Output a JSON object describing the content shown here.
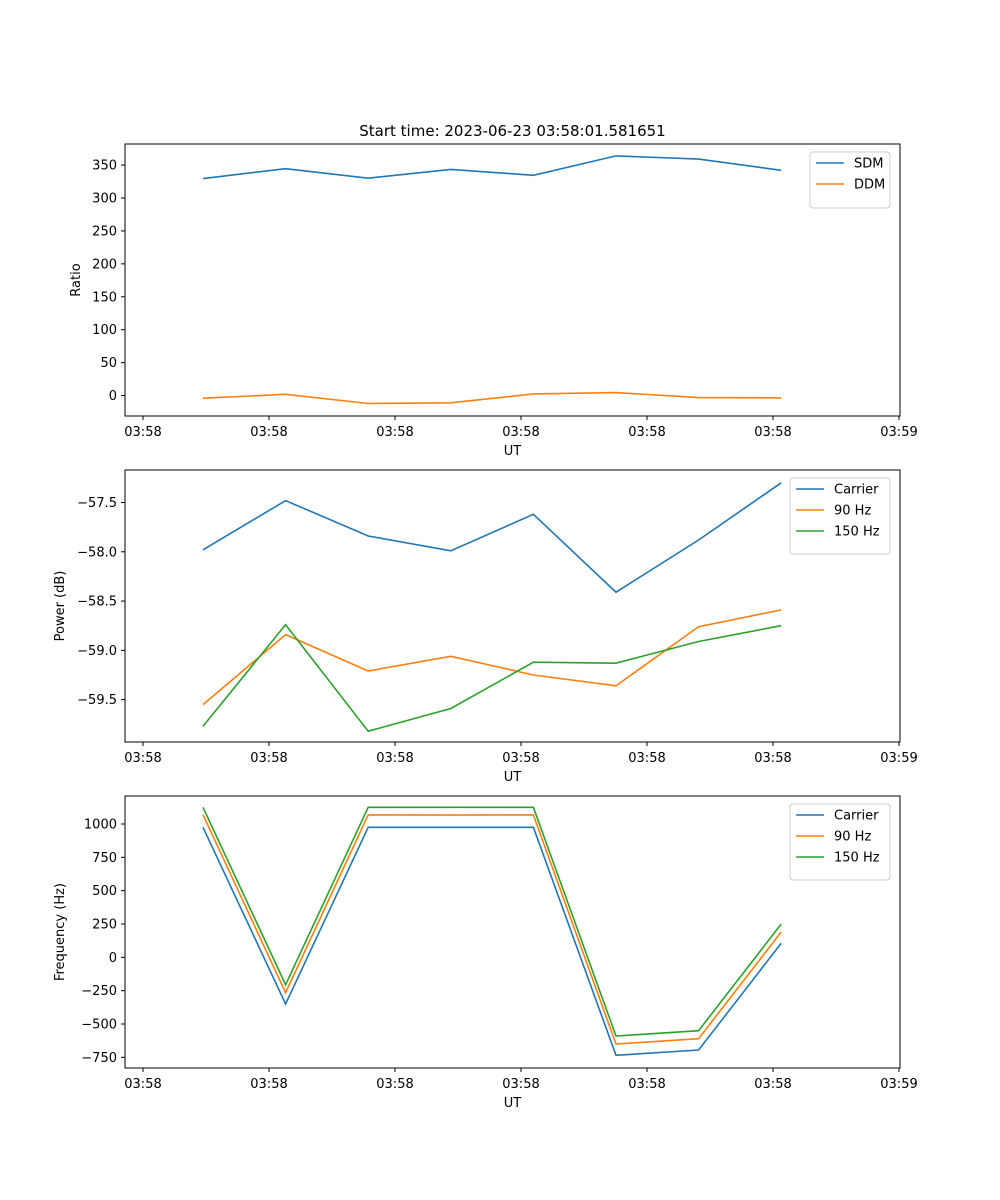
{
  "chart_data": [
    {
      "type": "line",
      "title": "Start time: 2023-06-23 03:58:01.581651",
      "xlabel": "UT",
      "ylabel": "Ratio",
      "x_tick_labels": [
        "03:58",
        "03:58",
        "03:58",
        "03:58",
        "03:58",
        "03:58",
        "03:59"
      ],
      "y_ticks": [
        0,
        50,
        100,
        150,
        200,
        250,
        300,
        350
      ],
      "ylim": [
        -31,
        382
      ],
      "legend_position": "top-right",
      "series": [
        {
          "name": "SDM",
          "color": "#1f77b4",
          "values": [
            329.5,
            344.5,
            330.0,
            343.5,
            334.5,
            364.0,
            359.0,
            342.0
          ]
        },
        {
          "name": "DDM",
          "color": "#ff7f0e",
          "values": [
            -4.0,
            2.0,
            -12.0,
            -11.0,
            2.5,
            4.5,
            -3.0,
            -3.5
          ]
        }
      ]
    },
    {
      "type": "line",
      "title": "",
      "xlabel": "UT",
      "ylabel": "Power (dB)",
      "x_tick_labels": [
        "03:58",
        "03:58",
        "03:58",
        "03:58",
        "03:58",
        "03:58",
        "03:59"
      ],
      "y_ticks": [
        -57.5,
        -58.0,
        -58.5,
        -59.0,
        -59.5
      ],
      "y_tick_labels": [
        "−57.5",
        "−58.0",
        "−58.5",
        "−59.0",
        "−59.5"
      ],
      "ylim": [
        -59.93,
        -57.17
      ],
      "legend_position": "top-right",
      "series": [
        {
          "name": "Carrier",
          "color": "#1f77b4",
          "values": [
            -57.98,
            -57.48,
            -57.84,
            -57.99,
            -57.62,
            -58.41,
            -57.88,
            -57.3
          ]
        },
        {
          "name": "90 Hz",
          "color": "#ff7f0e",
          "values": [
            -59.55,
            -58.84,
            -59.21,
            -59.06,
            -59.25,
            -59.36,
            -58.76,
            -58.59
          ]
        },
        {
          "name": "150 Hz",
          "color": "#2ca02c",
          "values": [
            -59.77,
            -58.74,
            -59.82,
            -59.59,
            -59.12,
            -59.13,
            -58.91,
            -58.75
          ]
        }
      ]
    },
    {
      "type": "line",
      "title": "",
      "xlabel": "UT",
      "ylabel": "Frequency (Hz)",
      "x_tick_labels": [
        "03:58",
        "03:58",
        "03:58",
        "03:58",
        "03:58",
        "03:58",
        "03:59"
      ],
      "y_ticks": [
        1000,
        750,
        500,
        250,
        0,
        -250,
        -500,
        -750
      ],
      "y_tick_labels": [
        "1000",
        "750",
        "500",
        "250",
        "0",
        "−250",
        "−500",
        "−750"
      ],
      "ylim": [
        -830,
        1210
      ],
      "legend_position": "top-right",
      "series": [
        {
          "name": "Carrier",
          "color": "#1f77b4",
          "values": [
            975,
            -350,
            975,
            975,
            975,
            -735,
            -695,
            105
          ]
        },
        {
          "name": "90 Hz",
          "color": "#ff7f0e",
          "values": [
            1070,
            -265,
            1068,
            1067,
            1068,
            -650,
            -610,
            190
          ]
        },
        {
          "name": "150 Hz",
          "color": "#2ca02c",
          "values": [
            1125,
            -205,
            1125,
            1125,
            1125,
            -590,
            -550,
            250
          ]
        }
      ]
    }
  ]
}
